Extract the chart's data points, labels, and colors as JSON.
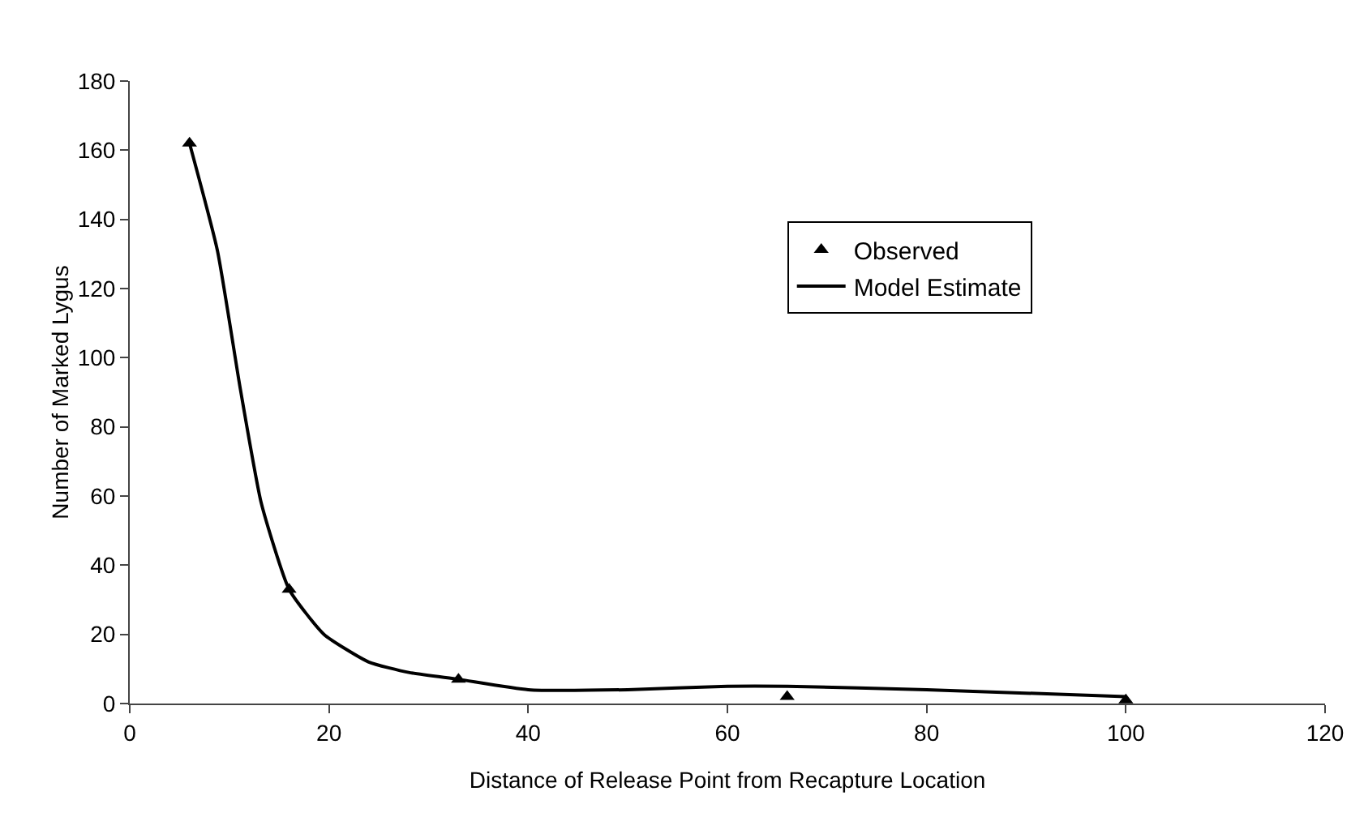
{
  "chart_data": {
    "type": "scatter",
    "xlabel": "Distance of Release Point from Recapture Location",
    "ylabel": "Number of Marked Lygus",
    "series": [
      {
        "name": "Observed",
        "marker": "triangle",
        "color": "#000000",
        "x": [
          6,
          16,
          33,
          66,
          100
        ],
        "values": [
          162,
          33,
          7,
          2,
          1
        ]
      },
      {
        "name": "Model Estimate",
        "type": "line",
        "marker": "none",
        "color": "#000000",
        "x": [
          6,
          8.8,
          11.1,
          13.2,
          16,
          19.5,
          24,
          28,
          33,
          40,
          50,
          60,
          66,
          80,
          100
        ],
        "values": [
          162,
          131,
          91,
          58,
          33,
          20,
          12,
          9,
          7,
          4,
          4,
          5,
          5,
          4,
          2
        ]
      }
    ],
    "xlim": [
      0,
      120
    ],
    "xticks": [
      0,
      20,
      40,
      60,
      80,
      100,
      120
    ],
    "ylim": [
      0,
      180
    ],
    "yticks": [
      0,
      20,
      40,
      60,
      80,
      100,
      120,
      140,
      160,
      180
    ],
    "grid": false,
    "legend": "right"
  }
}
